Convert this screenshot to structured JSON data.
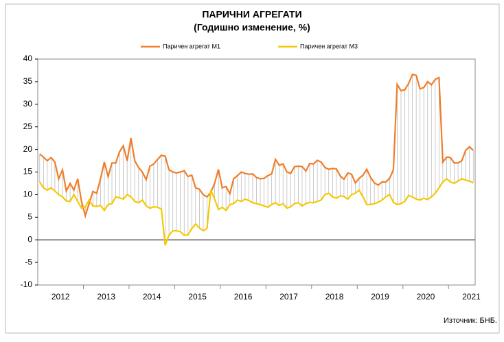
{
  "chart_data": {
    "type": "line",
    "title": "ПАРИЧНИ АГРЕГАТИ",
    "subtitle": "(Годишно изменение, %)",
    "source": "Източник: БНБ.",
    "categories": [
      "2012",
      null,
      null,
      null,
      null,
      null,
      null,
      null,
      null,
      null,
      null,
      null,
      "2013",
      null,
      null,
      null,
      null,
      null,
      null,
      null,
      null,
      null,
      null,
      null,
      "2014",
      null,
      null,
      null,
      null,
      null,
      null,
      null,
      null,
      null,
      null,
      null,
      "2015",
      null,
      null,
      null,
      null,
      null,
      null,
      null,
      null,
      null,
      null,
      null,
      "2016",
      null,
      null,
      null,
      null,
      null,
      null,
      null,
      null,
      null,
      null,
      null,
      "2017",
      null,
      null,
      null,
      null,
      null,
      null,
      null,
      null,
      null,
      null,
      null,
      "2018",
      null,
      null,
      null,
      null,
      null,
      null,
      null,
      null,
      null,
      null,
      null,
      "2019",
      null,
      null,
      null,
      null,
      null,
      null,
      null,
      null,
      null,
      null,
      null,
      "2020",
      null,
      null,
      null,
      null,
      null,
      null,
      null,
      null,
      null,
      null,
      null,
      "2021",
      null,
      null,
      null,
      null,
      null,
      null
    ],
    "series": [
      {
        "name": "Паричен агрегат М1",
        "color": "#f07d28",
        "values": [
          19,
          18.3,
          17.5,
          18.2,
          17.2,
          13.5,
          15.5,
          10.8,
          12.5,
          11,
          13.5,
          8.5,
          5.3,
          8,
          10.7,
          10.3,
          13.5,
          17.2,
          14,
          17,
          17,
          19.5,
          20.8,
          17.5,
          22.5,
          17.5,
          16,
          15,
          13.3,
          16.3,
          16.8,
          17.8,
          18.7,
          18.5,
          15.5,
          15,
          14.8,
          15,
          15.3,
          14,
          14.3,
          11.5,
          11.2,
          10,
          9.5,
          10.5,
          12.5,
          15.6,
          11.5,
          11.8,
          10.2,
          13.5,
          14.2,
          15,
          14.7,
          14.5,
          14.6,
          13.8,
          13.5,
          13.6,
          14.2,
          14.6,
          17.8,
          16.5,
          16.8,
          15,
          14.7,
          16.2,
          16.3,
          16.2,
          15.2,
          16.9,
          16.8,
          17.6,
          17.2,
          16,
          15.6,
          15.8,
          15.7,
          14.2,
          13.4,
          14.8,
          14.5,
          12.6,
          13.6,
          14.3,
          15.6,
          13.8,
          12.6,
          12.1,
          12.8,
          12.8,
          13.6,
          15.5,
          34.4,
          33,
          33.2,
          34.6,
          36.6,
          36.4,
          33.4,
          33.7,
          35,
          34.3,
          35.5,
          35.9,
          17.2,
          18.3,
          18.2,
          17,
          17,
          17.5,
          19.8,
          20.6,
          19.8
        ]
      },
      {
        "name": "Паричен агрегат М3",
        "color": "#f5c800",
        "values": [
          12.8,
          11.5,
          11,
          11.5,
          10.8,
          10,
          9.5,
          8.6,
          8.5,
          10,
          8.5,
          7,
          7.3,
          8.8,
          7.5,
          7.4,
          7.6,
          6.5,
          7.8,
          8,
          9.5,
          9.3,
          9,
          10,
          9.5,
          8.5,
          8.2,
          8.8,
          7.5,
          7,
          7.3,
          7.2,
          6.8,
          -1.2,
          1,
          2,
          2,
          1.8,
          1,
          1.1,
          2.5,
          3.5,
          2.6,
          2,
          2.5,
          11,
          9,
          6.7,
          7.2,
          6.5,
          7.8,
          8,
          8.8,
          8.5,
          9,
          8.7,
          8.2,
          8,
          7.8,
          7.5,
          7.2,
          7.8,
          8.2,
          7.6,
          8,
          7,
          7.3,
          8,
          8.2,
          7.5,
          8,
          8.3,
          8.2,
          8.5,
          8.8,
          10,
          10.3,
          9.5,
          9.2,
          9.7,
          9.6,
          9,
          10,
          10.3,
          11,
          9.5,
          7.8,
          7.8,
          8,
          8.3,
          8.8,
          9.5,
          10,
          8.3,
          7.8,
          8,
          8.5,
          9.8,
          9.5,
          9,
          8.8,
          9.2,
          8.9,
          9.5,
          10.3,
          11.5,
          12.8,
          13.5,
          12.8,
          12.5,
          13,
          13.5,
          13.2,
          13,
          12.6
        ]
      }
    ],
    "ylim": [
      -10,
      40
    ],
    "yticks": [
      -10,
      -5,
      0,
      5,
      10,
      15,
      20,
      25,
      30,
      35,
      40
    ],
    "legend": "top"
  }
}
